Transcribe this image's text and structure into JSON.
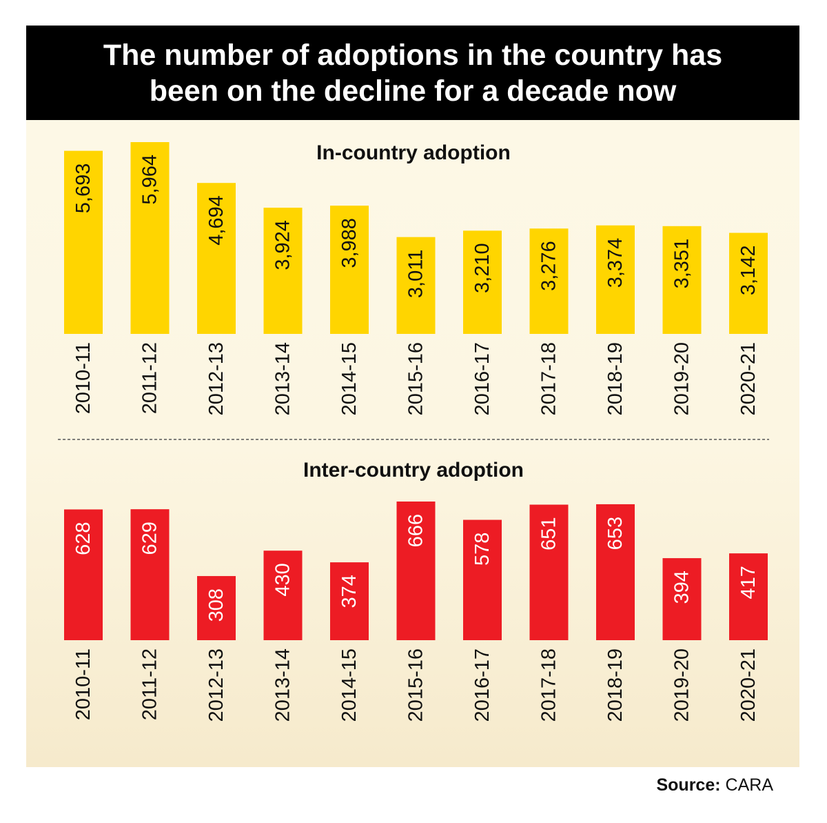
{
  "header": {
    "title_line1": "The number of adoptions in the country has",
    "title_line2": "been on the decline for a decade now"
  },
  "source": {
    "label": "Source:",
    "value": "CARA"
  },
  "colors": {
    "in_country": "#ffd500",
    "inter_country": "#ed1c24",
    "divider": "#555555"
  },
  "chart_data": [
    {
      "type": "bar",
      "title": "In-country adoption",
      "categories": [
        "2010-11",
        "2011-12",
        "2012-13",
        "2013-14",
        "2014-15",
        "2015-16",
        "2016-17",
        "2017-18",
        "2018-19",
        "2019-20",
        "2020-21"
      ],
      "values": [
        5693,
        5964,
        4694,
        3924,
        3988,
        3011,
        3210,
        3276,
        3374,
        3351,
        3142
      ],
      "labels": [
        "5,693",
        "5,964",
        "4,694",
        "3,924",
        "3,988",
        "3,011",
        "3,210",
        "3,276",
        "3,374",
        "3,351",
        "3,142"
      ],
      "label_color": "dark"
    },
    {
      "type": "bar",
      "title": "Inter-country adoption",
      "categories": [
        "2010-11",
        "2011-12",
        "2012-13",
        "2013-14",
        "2014-15",
        "2015-16",
        "2016-17",
        "2017-18",
        "2018-19",
        "2019-20",
        "2020-21"
      ],
      "values": [
        628,
        629,
        308,
        430,
        374,
        666,
        578,
        651,
        653,
        394,
        417
      ],
      "labels": [
        "628",
        "629",
        "308",
        "430",
        "374",
        "666",
        "578",
        "651",
        "653",
        "394",
        "417"
      ],
      "label_color": "light"
    }
  ]
}
